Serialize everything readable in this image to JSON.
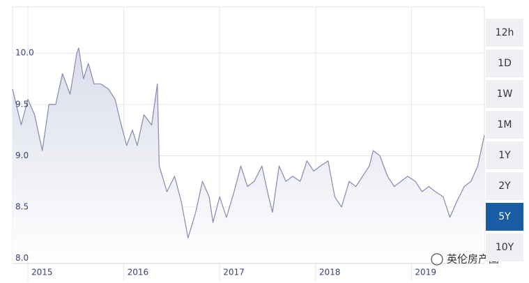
{
  "chart_data": {
    "type": "line",
    "x": [
      2014.84,
      2014.93,
      2015.0,
      2015.07,
      2015.15,
      2015.22,
      2015.29,
      2015.36,
      2015.44,
      2015.51,
      2015.53,
      2015.58,
      2015.63,
      2015.69,
      2015.76,
      2015.84,
      2015.91,
      2015.96,
      2016.03,
      2016.09,
      2016.14,
      2016.21,
      2016.29,
      2016.35,
      2016.37,
      2016.45,
      2016.53,
      2016.6,
      2016.67,
      2016.75,
      2016.82,
      2016.89,
      2016.93,
      2017.0,
      2017.07,
      2017.15,
      2017.22,
      2017.29,
      2017.36,
      2017.44,
      2017.51,
      2017.55,
      2017.62,
      2017.69,
      2017.76,
      2017.84,
      2017.91,
      2017.98,
      2018.05,
      2018.13,
      2018.2,
      2018.27,
      2018.35,
      2018.42,
      2018.49,
      2018.56,
      2018.6,
      2018.67,
      2018.75,
      2018.82,
      2018.89,
      2018.96,
      2019.04,
      2019.11,
      2019.18,
      2019.25,
      2019.33,
      2019.4,
      2019.47,
      2019.55,
      2019.62,
      2019.69,
      2019.76
    ],
    "series": [
      {
        "color": "#8c90b2",
        "values": [
          9.65,
          9.3,
          9.55,
          9.4,
          9.05,
          9.5,
          9.5,
          9.8,
          9.6,
          10.0,
          10.05,
          9.75,
          9.9,
          9.7,
          9.7,
          9.65,
          9.55,
          9.35,
          9.1,
          9.25,
          9.1,
          9.4,
          9.3,
          9.7,
          8.9,
          8.65,
          8.8,
          8.55,
          8.2,
          8.45,
          8.75,
          8.6,
          8.35,
          8.6,
          8.4,
          8.65,
          8.9,
          8.7,
          8.75,
          8.9,
          8.6,
          8.45,
          8.9,
          8.75,
          8.8,
          8.75,
          8.95,
          8.85,
          8.9,
          8.95,
          8.6,
          8.5,
          8.75,
          8.7,
          8.8,
          8.9,
          9.05,
          9.0,
          8.8,
          8.7,
          8.75,
          8.8,
          8.75,
          8.65,
          8.7,
          8.65,
          8.6,
          8.4,
          8.55,
          8.7,
          8.75,
          8.9,
          9.2
        ]
      }
    ],
    "xlim": [
      2014.84,
      2019.76
    ],
    "xticks": [
      2015,
      2016,
      2017,
      2018,
      2019
    ],
    "ylim": [
      7.95,
      10.45
    ],
    "yticks": [
      {
        "value": 8,
        "label": "8.0"
      },
      8.5,
      {
        "value": 9,
        "label": "9.0"
      },
      9.5,
      {
        "value": 10,
        "label": "10.0"
      }
    ],
    "grid": true,
    "area_fill": "#d9dcea"
  },
  "range_buttons": [
    {
      "label": "12h",
      "active": false
    },
    {
      "label": "1D",
      "active": false
    },
    {
      "label": "1W",
      "active": false
    },
    {
      "label": "1M",
      "active": false
    },
    {
      "label": "1Y",
      "active": false
    },
    {
      "label": "2Y",
      "active": false
    },
    {
      "label": "5Y",
      "active": true
    },
    {
      "label": "10Y",
      "active": false
    }
  ],
  "watermark": "英伦房产圈"
}
